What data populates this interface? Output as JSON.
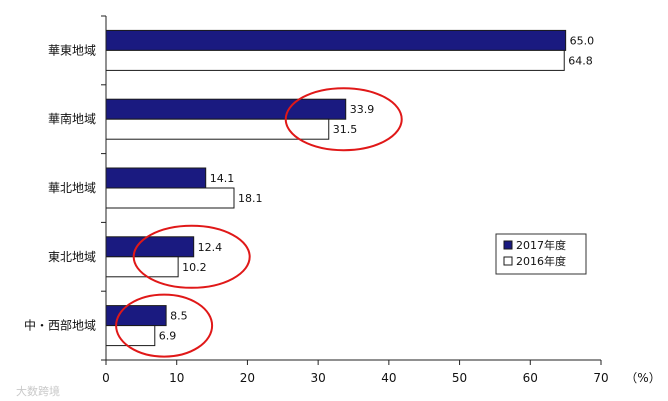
{
  "chart_data": {
    "type": "bar",
    "orientation": "horizontal",
    "categories": [
      "華東地域",
      "華南地域",
      "華北地域",
      "東北地域",
      "中・西部地域"
    ],
    "series": [
      {
        "name": "2017年度",
        "values": [
          65.0,
          33.9,
          14.1,
          12.4,
          8.5
        ],
        "color": "#1a1a80"
      },
      {
        "name": "2016年度",
        "values": [
          64.8,
          31.5,
          18.1,
          10.2,
          6.9
        ],
        "color": "#ffffff"
      }
    ],
    "xlim": [
      0,
      70
    ],
    "xticks": [
      0,
      10,
      20,
      30,
      40,
      50,
      60,
      70
    ],
    "unit_label": "（%）",
    "legend_position": "right",
    "grid": false,
    "highlight_color": "#e01818",
    "highlighted_categories": [
      "華南地域",
      "東北地域",
      "中・西部地域"
    ]
  },
  "watermark": "大数跨境"
}
